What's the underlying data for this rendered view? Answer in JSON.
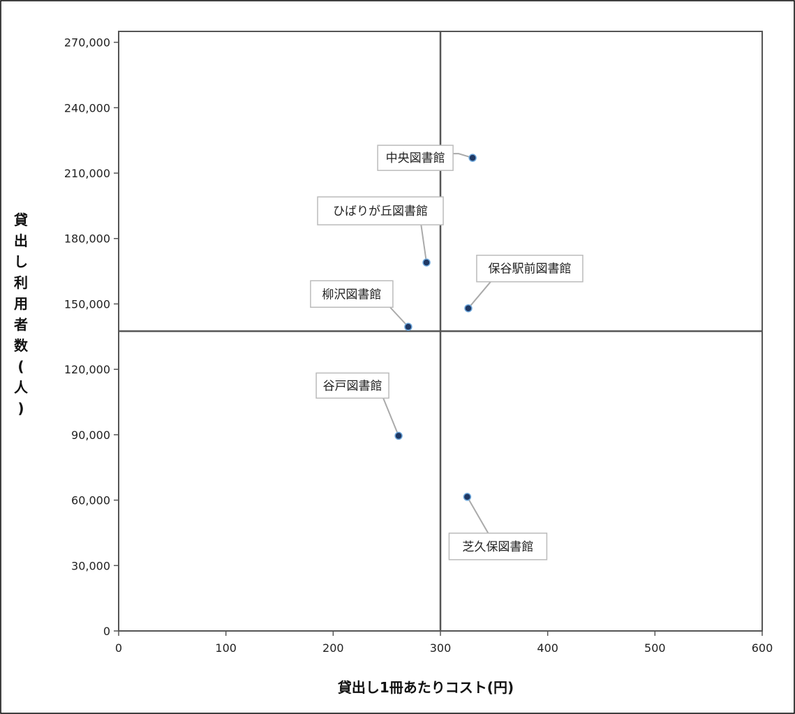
{
  "chart_data": {
    "type": "scatter",
    "xlabel": "貸出し1冊あたりコスト(円)",
    "ylabel": "貸出し利用者数(人)",
    "xlim": [
      0,
      600
    ],
    "ylim": [
      0,
      275000
    ],
    "x_ticks": [
      "0",
      "100",
      "200",
      "300",
      "400",
      "500",
      "600"
    ],
    "y_ticks": [
      "0",
      "30,000",
      "60,000",
      "90,000",
      "120,000",
      "150,000",
      "180,000",
      "210,000",
      "240,000",
      "270,000"
    ],
    "x_tick_values": [
      0,
      100,
      200,
      300,
      400,
      500,
      600
    ],
    "y_tick_values": [
      0,
      30000,
      60000,
      90000,
      120000,
      150000,
      180000,
      210000,
      240000,
      270000
    ],
    "reference_lines": {
      "x": 300,
      "y": 137500
    },
    "grid": false,
    "point_color": "#1f3864",
    "points": [
      {
        "label": "中央図書館",
        "x": 330,
        "y": 217000
      },
      {
        "label": "ひばりが丘図書館",
        "x": 287,
        "y": 169000
      },
      {
        "label": "保谷駅前図書館",
        "x": 326,
        "y": 148000
      },
      {
        "label": "柳沢図書館",
        "x": 270,
        "y": 139500
      },
      {
        "label": "谷戸図書館",
        "x": 261,
        "y": 89500
      },
      {
        "label": "芝久保図書館",
        "x": 325,
        "y": 61500
      }
    ]
  }
}
